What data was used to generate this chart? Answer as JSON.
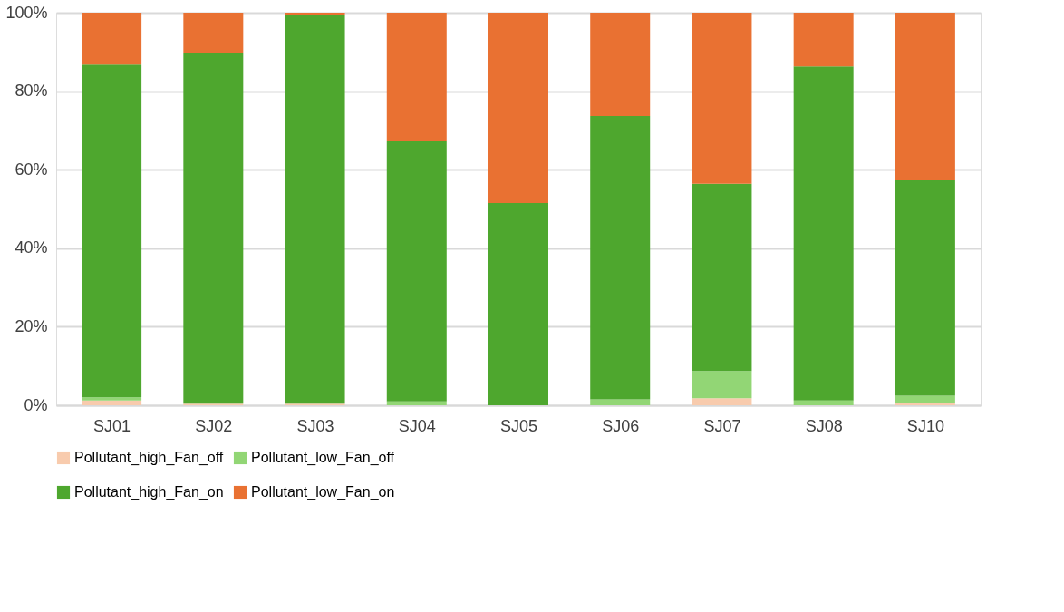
{
  "chart_data": {
    "type": "bar",
    "stacked": true,
    "categories": [
      "SJ01",
      "SJ02",
      "SJ03",
      "SJ04",
      "SJ05",
      "SJ06",
      "SJ07",
      "SJ08",
      "SJ10"
    ],
    "series": [
      {
        "name": "Pollutant_high_Fan_off",
        "color": "#f8cbad",
        "values": [
          1.2,
          0.4,
          0.4,
          0,
          0,
          0,
          1.8,
          0,
          0.5
        ]
      },
      {
        "name": "Pollutant_low_Fan_off",
        "color": "#92d675",
        "values": [
          0.8,
          0,
          0,
          1.0,
          0,
          1.5,
          6.9,
          1.2,
          1.9
        ]
      },
      {
        "name": "Pollutant_high_Fan_on",
        "color": "#4ea72e",
        "values": [
          84.8,
          89.2,
          98.9,
          66.4,
          51.5,
          72.2,
          47.7,
          85.1,
          55.1
        ]
      },
      {
        "name": "Pollutant_low_Fan_on",
        "color": "#e97132",
        "values": [
          13.2,
          10.4,
          0.7,
          32.6,
          48.5,
          26.3,
          43.6,
          13.7,
          42.5
        ]
      }
    ],
    "ylim": [
      0,
      100
    ],
    "yticks": [
      {
        "value": 0,
        "label": "0%"
      },
      {
        "value": 20,
        "label": "20%"
      },
      {
        "value": 40,
        "label": "40%"
      },
      {
        "value": 60,
        "label": "60%"
      },
      {
        "value": 80,
        "label": "80%"
      },
      {
        "value": 100,
        "label": "100%"
      }
    ],
    "grid": "y",
    "legend": "bottom"
  }
}
